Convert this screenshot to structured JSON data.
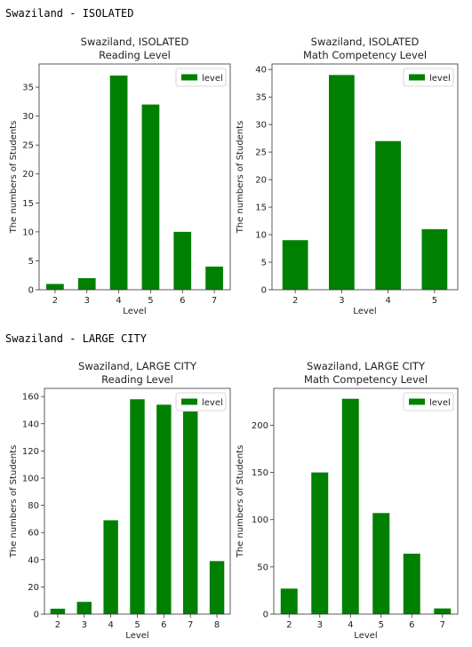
{
  "sections": [
    {
      "title": "Swaziland - ISOLATED"
    },
    {
      "title": "Swaziland - LARGE CITY"
    }
  ],
  "colors": {
    "bar": "#008000",
    "axis": "#333333"
  },
  "chart_data": [
    {
      "type": "bar",
      "title": "Swaziland, ISOLATED",
      "subtitle": "Reading Level",
      "xlabel": "Level",
      "ylabel": "The numbers of Students",
      "categories": [
        "2",
        "3",
        "4",
        "5",
        "6",
        "7"
      ],
      "series": [
        {
          "name": "level",
          "values": [
            1,
            2,
            37,
            32,
            10,
            4
          ]
        }
      ],
      "ylim": [
        0,
        39
      ],
      "yticks": [
        0,
        5,
        10,
        15,
        20,
        25,
        30,
        35
      ],
      "legend": "top-right",
      "grid": false
    },
    {
      "type": "bar",
      "title": "Swaziland, ISOLATED",
      "subtitle": "Math Competency Level",
      "xlabel": "Level",
      "ylabel": "The numbers of Students",
      "categories": [
        "2",
        "3",
        "4",
        "5"
      ],
      "series": [
        {
          "name": "level",
          "values": [
            9,
            39,
            27,
            11
          ]
        }
      ],
      "ylim": [
        0,
        41
      ],
      "yticks": [
        0,
        5,
        10,
        15,
        20,
        25,
        30,
        35,
        40
      ],
      "legend": "top-right",
      "grid": false
    },
    {
      "type": "bar",
      "title": "Swaziland, LARGE CITY",
      "subtitle": "Reading Level",
      "xlabel": "Level",
      "ylabel": "The numbers of Students",
      "categories": [
        "2",
        "3",
        "4",
        "5",
        "6",
        "7",
        "8"
      ],
      "series": [
        {
          "name": "level",
          "values": [
            4,
            9,
            69,
            158,
            154,
            149,
            39
          ]
        }
      ],
      "ylim": [
        0,
        166
      ],
      "yticks": [
        0,
        20,
        40,
        60,
        80,
        100,
        120,
        140,
        160
      ],
      "legend": "top-right",
      "grid": false
    },
    {
      "type": "bar",
      "title": "Swaziland, LARGE CITY",
      "subtitle": "Math Competency Level",
      "xlabel": "Level",
      "ylabel": "The numbers of Students",
      "categories": [
        "2",
        "3",
        "4",
        "5",
        "6",
        "7"
      ],
      "series": [
        {
          "name": "level",
          "values": [
            27,
            150,
            228,
            107,
            64,
            6
          ]
        }
      ],
      "ylim": [
        0,
        239
      ],
      "yticks": [
        0,
        50,
        100,
        150,
        200
      ],
      "legend": "top-right",
      "grid": false
    }
  ]
}
